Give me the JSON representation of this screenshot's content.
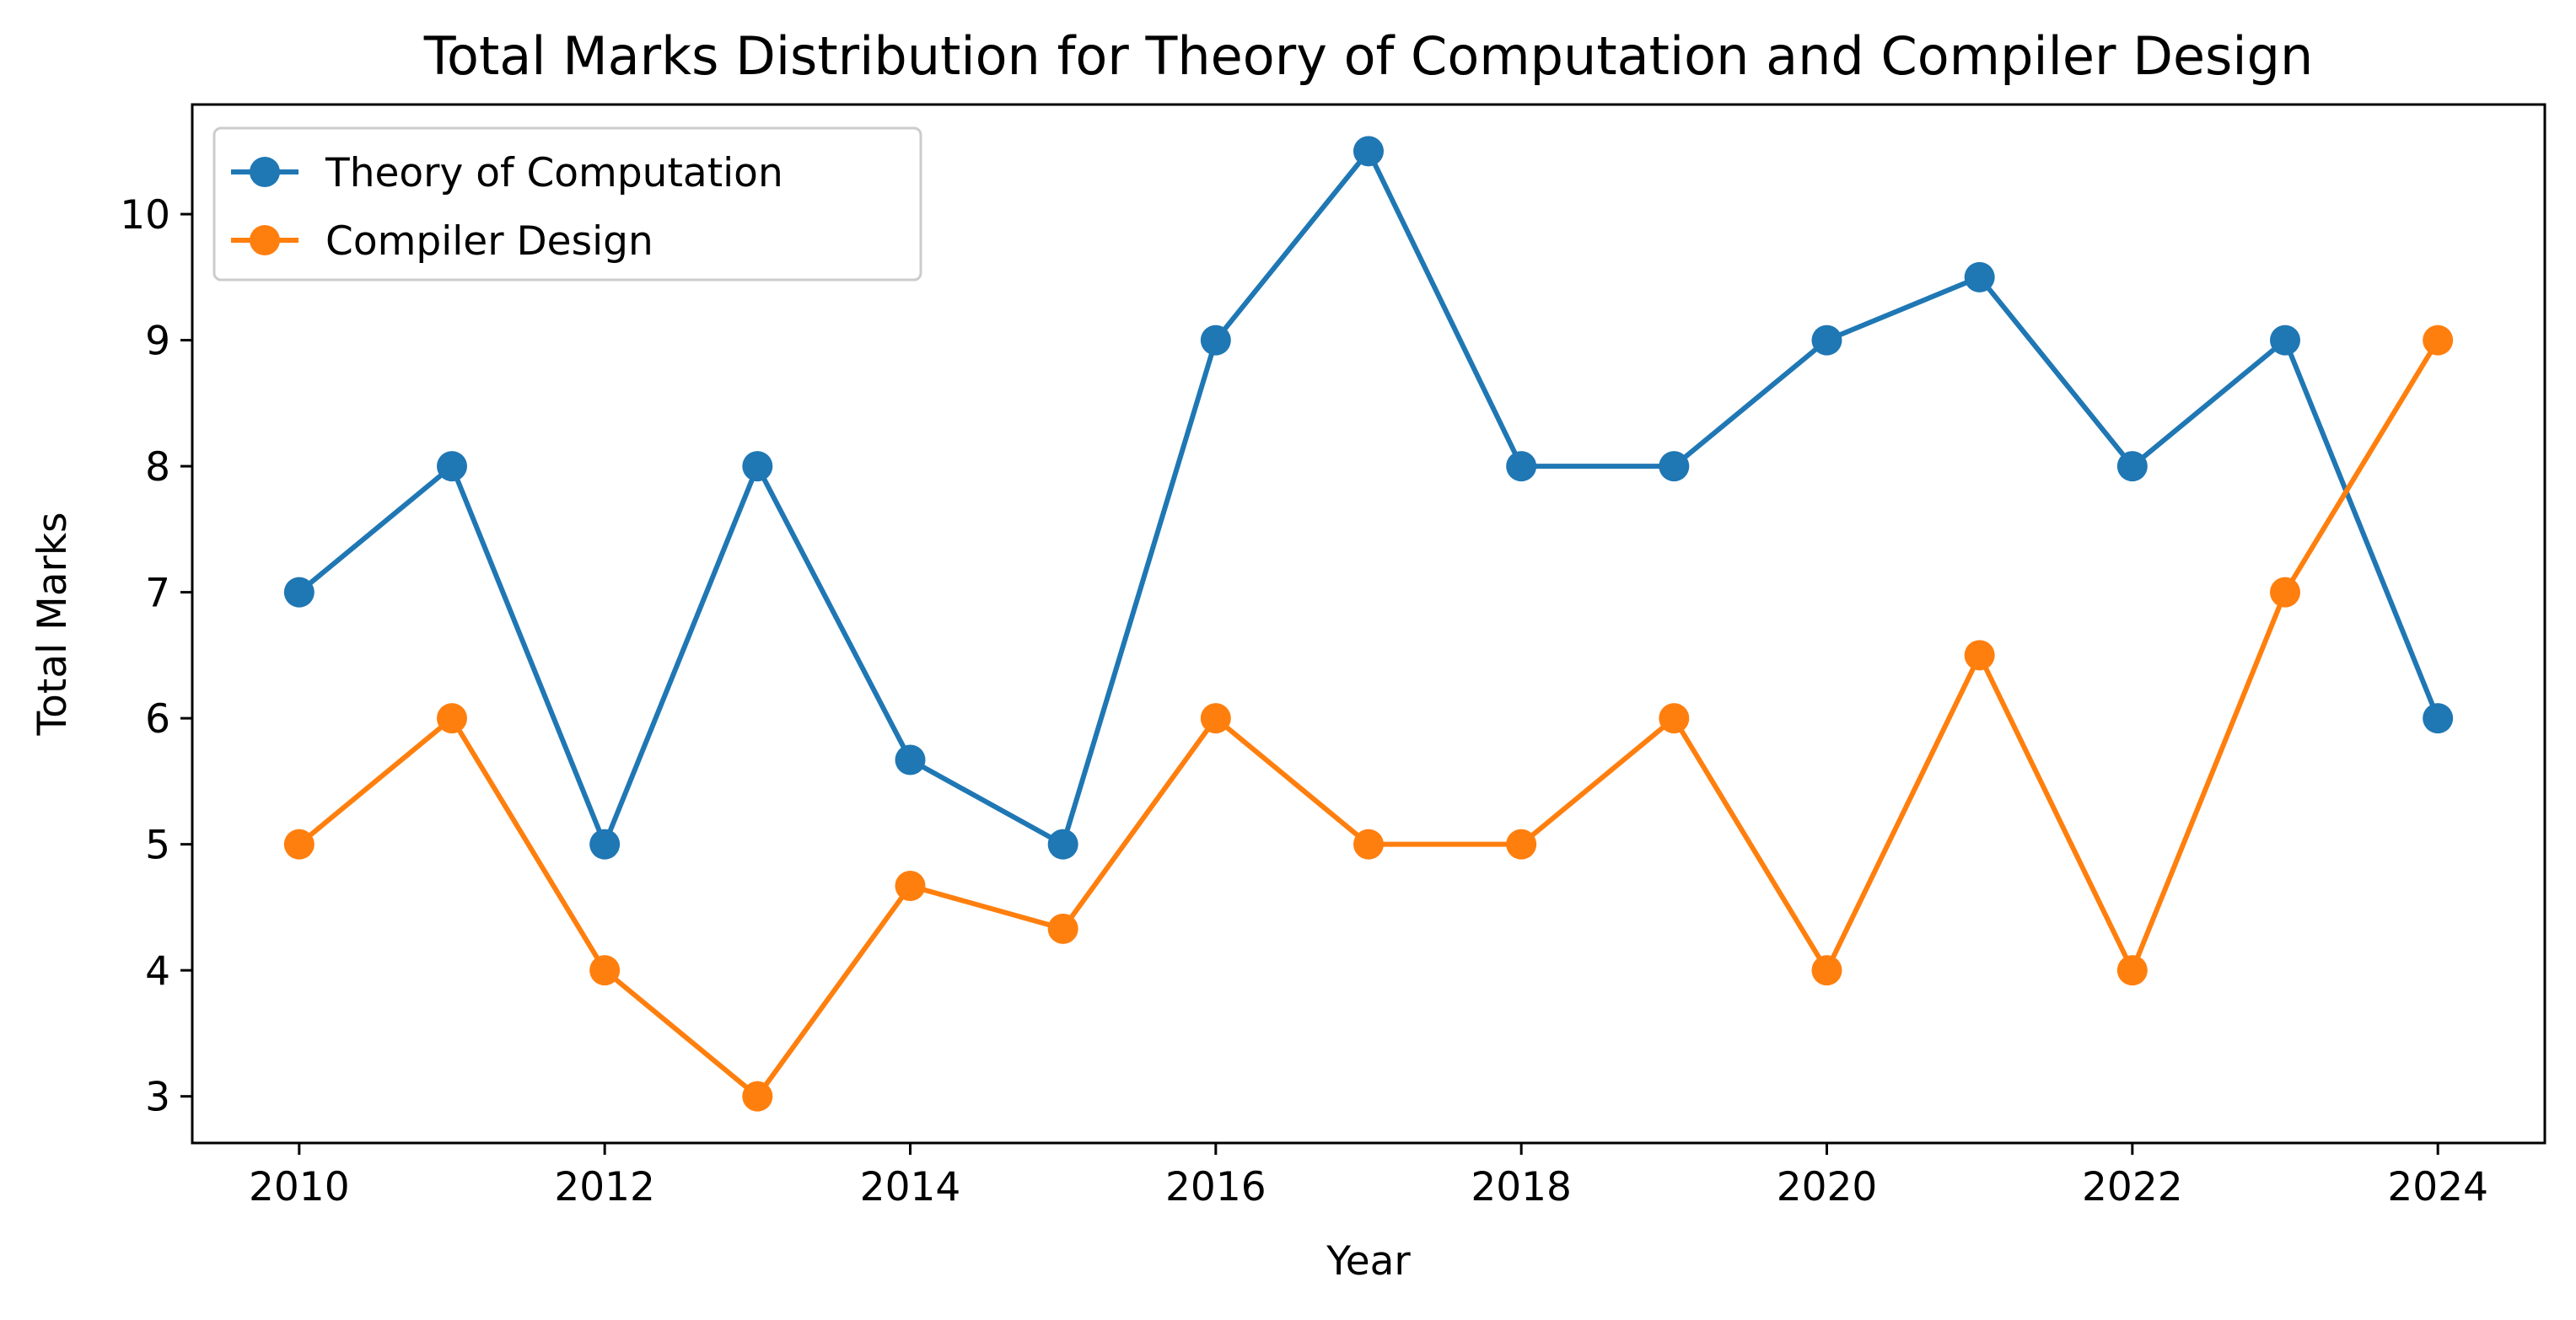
{
  "chart_data": {
    "type": "line",
    "title": "Total Marks Distribution for Theory of Computation and Compiler Design",
    "xlabel": "Year",
    "ylabel": "Total Marks",
    "x": [
      2010,
      2011,
      2012,
      2013,
      2014,
      2015,
      2016,
      2017,
      2018,
      2019,
      2020,
      2021,
      2022,
      2023,
      2024
    ],
    "xticks": [
      "2010",
      "2012",
      "2014",
      "2016",
      "2018",
      "2020",
      "2022",
      "2024"
    ],
    "yticks": [
      "3",
      "4",
      "5",
      "6",
      "7",
      "8",
      "9",
      "10"
    ],
    "xlim": [
      2009.3,
      2024.7
    ],
    "ylim": [
      2.63,
      10.87
    ],
    "grid": false,
    "legend_position": "top-left",
    "series": [
      {
        "name": "Theory of Computation",
        "color": "#1f77b4",
        "marker": "circle",
        "values": [
          7,
          8,
          5,
          8,
          5.67,
          5,
          9,
          10.5,
          8,
          8,
          9,
          9.5,
          8,
          9,
          6
        ]
      },
      {
        "name": "Compiler Design",
        "color": "#ff7f0e",
        "marker": "circle",
        "values": [
          5,
          6,
          4,
          3,
          4.67,
          4.33,
          6,
          5,
          5,
          6,
          4,
          6.5,
          4,
          7,
          9
        ]
      }
    ]
  }
}
